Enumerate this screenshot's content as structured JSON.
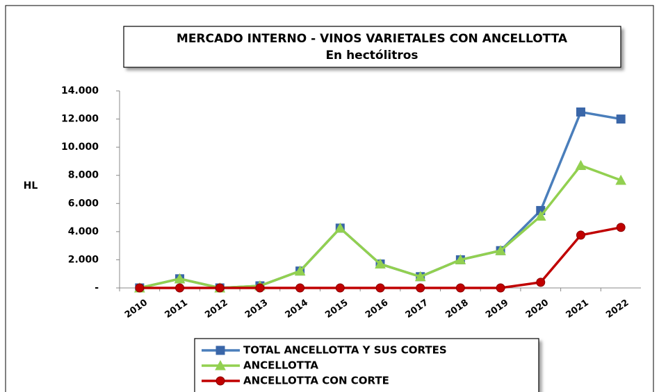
{
  "chart_data": {
    "type": "line",
    "title": "MERCADO INTERNO - VINOS VARIETALES CON ANCELLOTTA",
    "subtitle": "En hectólitros",
    "y_label": "HL",
    "categories": [
      "2010",
      "2011",
      "2012",
      "2013",
      "2014",
      "2015",
      "2016",
      "2017",
      "2018",
      "2019",
      "2020",
      "2021",
      "2022"
    ],
    "series": [
      {
        "name": "TOTAL ANCELLOTTA Y SUS CORTES",
        "color": "#4a7ebb",
        "marker": "square",
        "values": [
          0,
          650,
          0,
          150,
          1200,
          4250,
          1700,
          800,
          2000,
          2650,
          5500,
          12500,
          12000
        ]
      },
      {
        "name": "ANCELLOTTA",
        "color": "#92d050",
        "marker": "triangle",
        "values": [
          0,
          650,
          0,
          150,
          1200,
          4250,
          1700,
          800,
          2000,
          2650,
          5100,
          8700,
          7650
        ]
      },
      {
        "name": "ANCELLOTTA  CON CORTE",
        "color": "#c00000",
        "marker": "circle",
        "values": [
          0,
          0,
          0,
          0,
          0,
          0,
          0,
          0,
          0,
          0,
          400,
          3750,
          4300
        ]
      }
    ],
    "ylim": [
      0,
      14000
    ],
    "yticks": [
      {
        "value": 0,
        "label": "-"
      },
      {
        "value": 2000,
        "label": "2.000"
      },
      {
        "value": 4000,
        "label": "4.000"
      },
      {
        "value": 6000,
        "label": "6.000"
      },
      {
        "value": 8000,
        "label": "8.000"
      },
      {
        "value": 10000,
        "label": "10.000"
      },
      {
        "value": 12000,
        "label": "12.000"
      },
      {
        "value": 14000,
        "label": "14.000"
      }
    ],
    "grid": false,
    "legend": "bottom"
  }
}
